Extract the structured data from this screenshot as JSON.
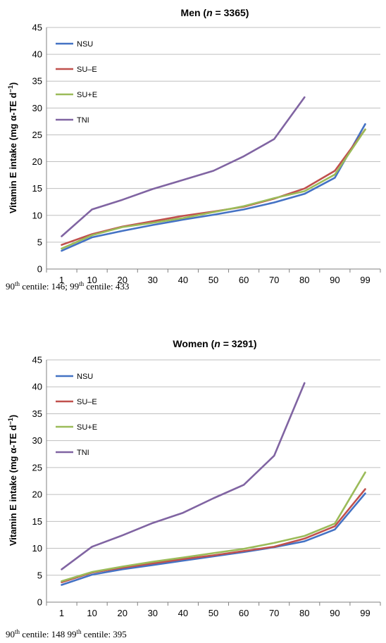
{
  "chart_data": [
    {
      "type": "line",
      "title": {
        "prefix": "Men (",
        "italic": "n",
        "suffix": " = 3365)"
      },
      "ylabel": {
        "main": "Vitamin E intake (mg α-TE d",
        "sup": "−1",
        "close": ")"
      },
      "xlabel": "",
      "categories": [
        "1",
        "10",
        "20",
        "30",
        "40",
        "50",
        "60",
        "70",
        "80",
        "90",
        "99"
      ],
      "ylim": [
        0,
        45
      ],
      "yticks": [
        0,
        5,
        10,
        15,
        20,
        25,
        30,
        35,
        40,
        45
      ],
      "grid": true,
      "legend_position": "top-left",
      "series": [
        {
          "name": "NSU",
          "color": "#4472c4",
          "values": [
            3.4,
            5.9,
            7.1,
            8.2,
            9.2,
            10.1,
            11.1,
            12.4,
            14.0,
            17.0,
            27.0
          ]
        },
        {
          "name": "SU–E",
          "color": "#c0504d",
          "values": [
            4.5,
            6.5,
            7.9,
            8.9,
            9.9,
            10.7,
            11.6,
            13.1,
            15.0,
            18.3,
            26.0
          ]
        },
        {
          "name": "SU+E",
          "color": "#9bbb59",
          "values": [
            3.8,
            6.3,
            7.8,
            8.6,
            9.5,
            10.6,
            11.7,
            13.2,
            14.5,
            17.6,
            26.0
          ]
        },
        {
          "name": "TNI",
          "color": "#8064a2",
          "values": [
            6.1,
            11.1,
            12.9,
            14.9,
            16.6,
            18.3,
            21.0,
            24.2,
            32.0,
            null,
            null
          ]
        }
      ],
      "note": {
        "p1_sup": "th",
        "p1": " centile: 146; 99",
        "p2_sup": "th",
        "p2": " centile: 433",
        "lead": "90"
      }
    },
    {
      "type": "line",
      "title": {
        "prefix": "Women (",
        "italic": "n",
        "suffix": " = 3291)"
      },
      "ylabel": {
        "main": "Vitamin E intake (mg α-TE d",
        "sup": "−1",
        "close": ")"
      },
      "xlabel": "",
      "categories": [
        "1",
        "10",
        "20",
        "30",
        "40",
        "50",
        "60",
        "70",
        "80",
        "90",
        "99"
      ],
      "ylim": [
        0,
        45
      ],
      "yticks": [
        0,
        5,
        10,
        15,
        20,
        25,
        30,
        35,
        40,
        45
      ],
      "grid": true,
      "legend_position": "top-left",
      "series": [
        {
          "name": "NSU",
          "color": "#4472c4",
          "values": [
            3.2,
            5.1,
            6.1,
            6.9,
            7.7,
            8.5,
            9.3,
            10.2,
            11.3,
            13.5,
            20.2
          ]
        },
        {
          "name": "SU–E",
          "color": "#c0504d",
          "values": [
            3.7,
            5.5,
            6.4,
            7.2,
            8.0,
            8.7,
            9.5,
            10.3,
            11.8,
            14.1,
            21.0
          ]
        },
        {
          "name": "SU+E",
          "color": "#9bbb59",
          "values": [
            3.9,
            5.6,
            6.6,
            7.5,
            8.3,
            9.1,
            9.9,
            11.0,
            12.3,
            14.6,
            24.1
          ]
        },
        {
          "name": "TNI",
          "color": "#8064a2",
          "values": [
            6.1,
            10.3,
            12.4,
            14.7,
            16.6,
            19.3,
            21.8,
            27.2,
            40.7,
            null,
            null
          ]
        }
      ],
      "note": {
        "lead": "90",
        "p1_sup": "th",
        "p1": " centile: 148 99",
        "p2_sup": "th",
        "p2": " centile: 395"
      }
    }
  ]
}
